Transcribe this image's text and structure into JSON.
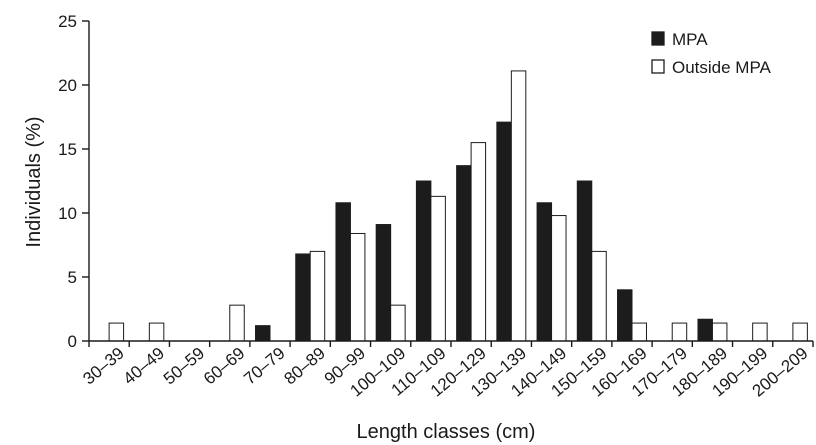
{
  "chart_data": {
    "type": "bar",
    "title": "",
    "xlabel": "Length classes (cm)",
    "ylabel": "Individuals (%)",
    "ylim": [
      0,
      25
    ],
    "yticks": [
      0,
      5,
      10,
      15,
      20,
      25
    ],
    "grid": false,
    "legend_position": "top-right",
    "categories": [
      "30–39",
      "40–49",
      "50–59",
      "60–69",
      "70–79",
      "80–89",
      "90–99",
      "100–109",
      "110–109",
      "120–129",
      "130–139",
      "140–149",
      "150–159",
      "160–169",
      "170–179",
      "180–189",
      "190–199",
      "200–209"
    ],
    "series": [
      {
        "name": "MPA",
        "color": "#1c1c1c",
        "values": [
          0,
          0,
          0,
          0,
          1.2,
          6.8,
          10.8,
          9.1,
          12.5,
          13.7,
          17.1,
          10.8,
          12.5,
          4.0,
          0,
          1.7,
          0,
          0
        ]
      },
      {
        "name": "Outside MPA",
        "color": "#ffffff",
        "values": [
          1.4,
          1.4,
          0,
          2.8,
          0,
          7.0,
          8.4,
          2.8,
          11.3,
          15.5,
          21.1,
          9.8,
          7.0,
          1.4,
          1.4,
          1.4,
          1.4,
          1.4
        ]
      }
    ]
  }
}
